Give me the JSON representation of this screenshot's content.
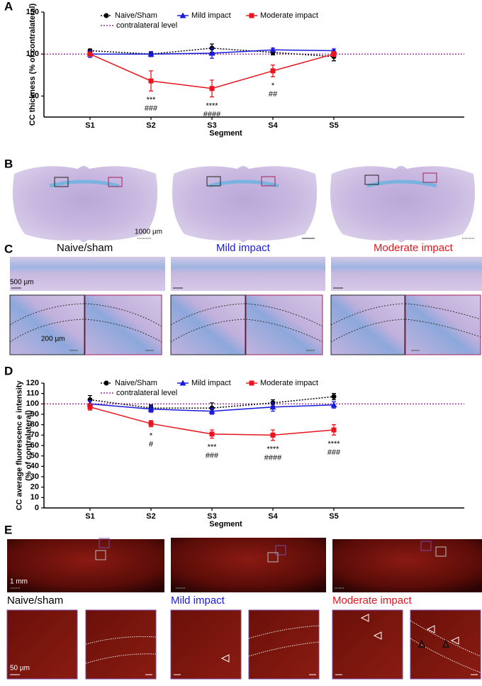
{
  "panels": {
    "labels": [
      "A",
      "B",
      "C",
      "D",
      "E"
    ],
    "groups": [
      "Naive/sham",
      "Mild impact",
      "Moderate impact"
    ],
    "group_colors": [
      "#000000",
      "#1a1adc",
      "#e8141e"
    ],
    "scale_bars": {
      "b": "1000 µm",
      "c_overview": "500 µm",
      "c_zoom": "200 µm",
      "e_overview": "1 mm",
      "e_zoom": "50 µm"
    }
  },
  "chart_data": [
    {
      "type": "line",
      "ylabel": [
        "CC thickness (% of contralateral)"
      ],
      "xlabel": "Segment",
      "categories": [
        "S1",
        "S2",
        "S3",
        "S4",
        "S5"
      ],
      "ylim": [
        25,
        150
      ],
      "yticks": [
        50,
        100,
        150
      ],
      "reference": {
        "value": 100,
        "label": "contralateral level",
        "color": "#800080"
      },
      "series": [
        {
          "name": "Naive/Sham",
          "color": "#000000",
          "marker": "circle",
          "dash": "dotted",
          "values": [
            104,
            100,
            107,
            102,
            97
          ],
          "errors": [
            2,
            3,
            5,
            3,
            5
          ]
        },
        {
          "name": "Mild impact",
          "color": "#1a1adc",
          "marker": "triangle",
          "dash": "solid",
          "values": [
            100,
            100,
            101,
            105,
            104
          ],
          "errors": [
            4,
            3,
            6,
            2,
            2
          ]
        },
        {
          "name": "Moderate impact",
          "color": "#e8141e",
          "marker": "square",
          "dash": "solid",
          "values": [
            100,
            68,
            59,
            80,
            100
          ],
          "errors": [
            2,
            12,
            10,
            7,
            3
          ]
        }
      ],
      "annotations": [
        {
          "x": "S2",
          "lines": [
            "***",
            "###"
          ]
        },
        {
          "x": "S3",
          "lines": [
            "****",
            "####"
          ]
        },
        {
          "x": "S4",
          "lines": [
            "*",
            "##"
          ]
        }
      ]
    },
    {
      "type": "line",
      "ylabel": [
        "CC average fluorescenc e intensity",
        "(% of contralateral)"
      ],
      "xlabel": "Segment",
      "categories": [
        "S1",
        "S2",
        "S3",
        "S4",
        "S5"
      ],
      "ylim": [
        0,
        120
      ],
      "yticks": [
        0,
        10,
        20,
        30,
        40,
        50,
        60,
        70,
        80,
        90,
        100,
        110,
        120
      ],
      "reference": {
        "value": 100,
        "label": "contralateral level",
        "color": "#800080"
      },
      "series": [
        {
          "name": "Naive/Sham",
          "color": "#000000",
          "marker": "circle",
          "dash": "dotted",
          "values": [
            104,
            96,
            96,
            101,
            107
          ],
          "errors": [
            4,
            3,
            5,
            3,
            3
          ]
        },
        {
          "name": "Mild impact",
          "color": "#1a1adc",
          "marker": "triangle",
          "dash": "solid",
          "values": [
            100,
            95,
            93,
            97,
            99
          ],
          "errors": [
            3,
            3,
            3,
            4,
            3
          ]
        },
        {
          "name": "Moderate impact",
          "color": "#e8141e",
          "marker": "square",
          "dash": "solid",
          "values": [
            97,
            81,
            71,
            70,
            75
          ],
          "errors": [
            3,
            3,
            4,
            5,
            5
          ]
        }
      ],
      "annotations": [
        {
          "x": "S2",
          "lines": [
            "*",
            "#"
          ]
        },
        {
          "x": "S3",
          "lines": [
            "***",
            "###"
          ]
        },
        {
          "x": "S4",
          "lines": [
            "****",
            "####"
          ]
        },
        {
          "x": "S5",
          "lines": [
            "****",
            "###"
          ]
        }
      ]
    }
  ]
}
